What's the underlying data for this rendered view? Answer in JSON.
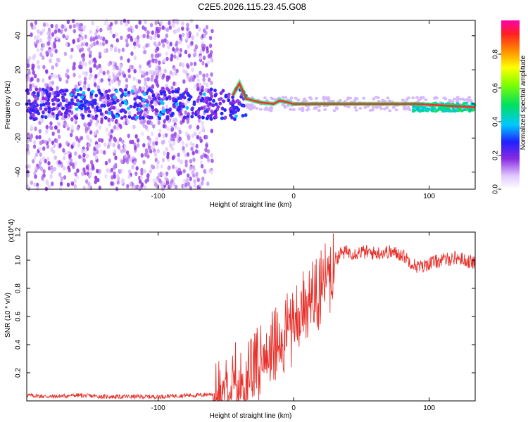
{
  "title": "C2E5.2026.115.23.45.G08",
  "chart_data": [
    {
      "type": "heatmap",
      "name": "spectrogram",
      "xlabel": "Height of straight line (km)",
      "ylabel": "Frequency (Hz)",
      "xlim": [
        -197,
        134
      ],
      "ylim": [
        -50,
        49
      ],
      "x_ticks": [
        -100,
        0,
        100
      ],
      "y_ticks": [
        -40,
        -20,
        0,
        20,
        40
      ],
      "x_tick_labels": [
        "-100",
        "0",
        "100"
      ],
      "y_tick_labels": [
        "-40",
        "-20",
        "0",
        "20",
        "40"
      ],
      "colorbar": {
        "label": "Normalized spectral amplitude",
        "range": [
          0,
          1
        ],
        "ticks": [
          0.0,
          0.2,
          0.4,
          0.6,
          0.8
        ],
        "tick_labels": [
          "0.0",
          "0.2",
          "0.4",
          "0.6",
          "0.8"
        ]
      },
      "ridge": {
        "description_values": "dominant frequency ridge (km, Hz)",
        "points": [
          [
            -45,
            5
          ],
          [
            -40,
            12
          ],
          [
            -35,
            3
          ],
          [
            -25,
            1
          ],
          [
            -15,
            0
          ],
          [
            -10,
            2
          ],
          [
            0,
            0
          ],
          [
            5,
            0
          ],
          [
            50,
            0
          ],
          [
            90,
            0
          ],
          [
            134,
            -2
          ]
        ]
      }
    },
    {
      "type": "line",
      "name": "snr",
      "xlabel": "Height of straight line (km)",
      "ylabel": "SNR (10 * v/v)",
      "y_multiplier": "(x10^4)",
      "xlim": [
        -197,
        134
      ],
      "ylim": [
        0,
        1.2
      ],
      "x_ticks": [
        -100,
        0,
        100
      ],
      "y_ticks": [
        0.2,
        0.4,
        0.6,
        0.8,
        1.0,
        1.2
      ],
      "x_tick_labels": [
        "-100",
        "0",
        "100"
      ],
      "y_tick_labels": [
        "0.2",
        "0.4",
        "0.6",
        "0.8",
        "1.0",
        "1.2"
      ],
      "series": [
        {
          "name": "SNR",
          "color": "#e8302a",
          "x": [
            -197,
            -180,
            -160,
            -140,
            -120,
            -100,
            -80,
            -70,
            -60,
            -55,
            -50,
            -45,
            -40,
            -35,
            -30,
            -25,
            -20,
            -15,
            -10,
            -5,
            0,
            5,
            10,
            15,
            20,
            25,
            30,
            35,
            40,
            45,
            50,
            60,
            70,
            80,
            90,
            95,
            100,
            110,
            120,
            130,
            134
          ],
          "y": [
            0.04,
            0.03,
            0.04,
            0.03,
            0.03,
            0.03,
            0.04,
            0.04,
            0.05,
            0.1,
            0.2,
            0.3,
            0.22,
            0.2,
            0.25,
            0.35,
            0.4,
            0.45,
            0.5,
            0.55,
            0.6,
            0.7,
            0.78,
            0.8,
            0.88,
            0.96,
            1.0,
            1.05,
            1.06,
            1.05,
            1.06,
            1.05,
            1.06,
            1.04,
            0.96,
            0.95,
            0.98,
            1.0,
            1.02,
            0.99,
            0.98
          ]
        }
      ]
    }
  ]
}
